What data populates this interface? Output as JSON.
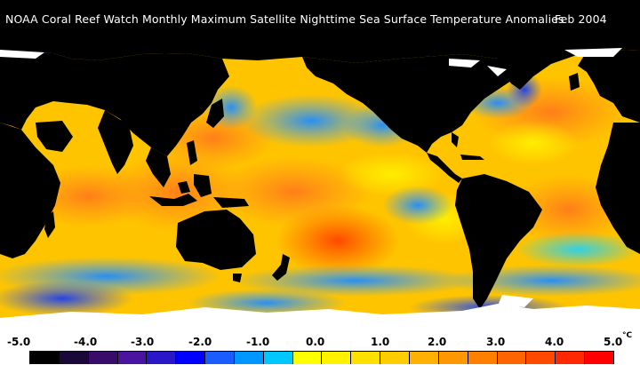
{
  "title": {
    "text": "NOAA Coral Reef Watch Monthly Maximum Satellite Nighttime Sea Surface Temperature Anomalies",
    "date": "Feb 2004"
  },
  "map": {
    "subject": "global sea surface temperature anomalies",
    "land_color": "#000000",
    "ice_color": "#ffffff"
  },
  "legend": {
    "ticks": [
      "-5.0",
      "-4.0",
      "-3.0",
      "-2.0",
      "-1.0",
      "0.0",
      "1.0",
      "2.0",
      "3.0",
      "4.0",
      "5.0"
    ],
    "unit": "°C",
    "colors": [
      "#000000",
      "#1a0838",
      "#3a0c6a",
      "#4a14a0",
      "#2a18c8",
      "#0000ff",
      "#1a5cff",
      "#0096ff",
      "#00c8ff",
      "#ffff00",
      "#fff200",
      "#ffe000",
      "#ffcc00",
      "#ffb000",
      "#ff9800",
      "#ff8000",
      "#ff6400",
      "#ff4800",
      "#ff2800",
      "#ff0000"
    ]
  }
}
